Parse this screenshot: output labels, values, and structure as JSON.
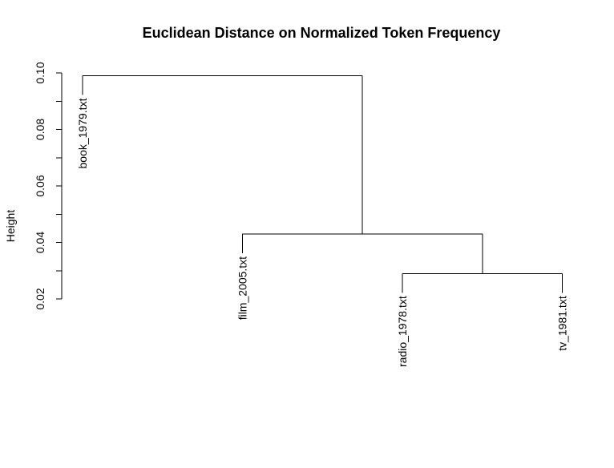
{
  "chart_data": {
    "type": "dendrogram",
    "title": "Euclidean Distance on Normalized Token Frequency",
    "ylabel": "Height",
    "xlabel": "",
    "ylim": [
      0.02,
      0.1
    ],
    "yticks": [
      {
        "value": 0.02,
        "label": "0.02"
      },
      {
        "value": 0.04,
        "label": "0.04"
      },
      {
        "value": 0.06,
        "label": "0.06"
      },
      {
        "value": 0.08,
        "label": "0.08"
      },
      {
        "value": 0.1,
        "label": "0.10"
      }
    ],
    "leaves": [
      {
        "label": "book_1979.txt",
        "order": 1
      },
      {
        "label": "film_2005.txt",
        "order": 2
      },
      {
        "label": "radio_1978.txt",
        "order": 3
      },
      {
        "label": "tv_1981.txt",
        "order": 4
      }
    ],
    "merges": [
      {
        "left": "radio_1978.txt",
        "right": "tv_1981.txt",
        "height": 0.029
      },
      {
        "left": "film_2005.txt",
        "right": "merge-1",
        "height": 0.043
      },
      {
        "left": "book_1979.txt",
        "right": "merge-2",
        "height": 0.099
      }
    ],
    "colors": {
      "line": "#000000",
      "text": "#000000",
      "background": "#ffffff"
    }
  }
}
